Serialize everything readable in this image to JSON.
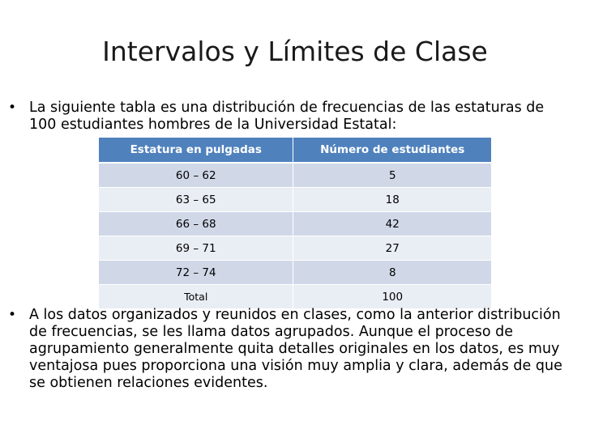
{
  "slide": {
    "title": "Intervalos y Límites de Clase",
    "bullet_char": "•",
    "bullet1": "La siguiente tabla es una distribución de frecuencias de las estaturas de 100 estudiantes hombres de la Universidad Estatal:",
    "bullet2": "A los datos organizados y reunidos en clases, como la anterior distribución de frecuencias, se les llama datos agrupados. Aunque el proceso de agrupamiento generalmente quita detalles originales en los datos, es muy ventajosa pues proporciona una visión muy amplia y clara, además de que se obtienen relaciones evidentes."
  },
  "table": {
    "headers": [
      "Estatura en  pulgadas",
      "Número de estudiantes"
    ],
    "rows": [
      [
        "60 – 62",
        "5"
      ],
      [
        "63 – 65",
        "18"
      ],
      [
        "66 – 68",
        "42"
      ],
      [
        "69 – 71",
        "27"
      ],
      [
        "72 – 74",
        "8"
      ],
      [
        "Total",
        "100"
      ]
    ]
  },
  "colors": {
    "header_bg": "#4f81bd",
    "row_dark": "#d0d8e8",
    "row_light": "#e9edf4"
  }
}
